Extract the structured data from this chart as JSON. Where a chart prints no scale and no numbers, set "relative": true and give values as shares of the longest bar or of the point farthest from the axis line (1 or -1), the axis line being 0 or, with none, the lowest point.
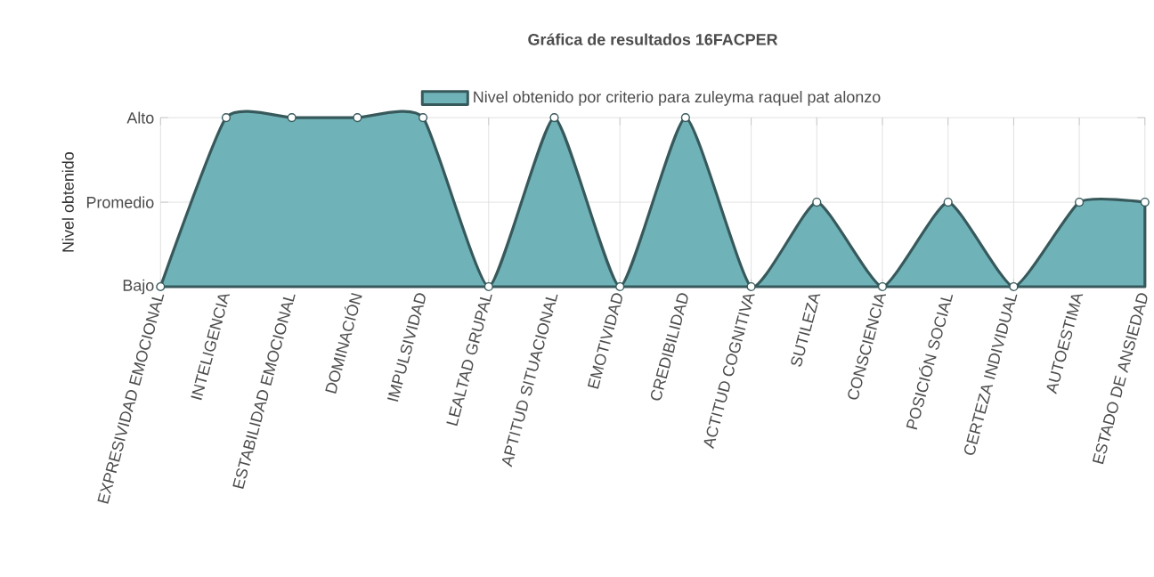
{
  "chart_data": {
    "type": "area",
    "title": "Gráfica de resultados 16FACPER",
    "ylabel": "Nivel obtenido",
    "categories": [
      "EXPRESIVIDAD EMOCIONAL",
      "INTELIGENCIA",
      "ESTABILIDAD EMOCIONAL",
      "DOMINACIÓN",
      "IMPULSIVIDAD",
      "LEALTAD GRUPAL",
      "APTITUD SITUACIONAL",
      "EMOTIVIDAD",
      "CREDIBILIDAD",
      "ACTITUD COGNITIVA",
      "SUTILEZA",
      "CONSCIENCIA",
      "POSICIÓN SOCIAL",
      "CERTEZA INDIVIDUAL",
      "AUTOESTIMA",
      "ESTADO DE ANSIEDAD"
    ],
    "series": [
      {
        "name": "Nivel obtenido por criterio para zuleyma raquel pat alonzo",
        "color": "#6fb3b8",
        "values": [
          0,
          1,
          1,
          1,
          1,
          0,
          1,
          0,
          1,
          0,
          0.5,
          0,
          0.5,
          0,
          0.5,
          0.5
        ]
      }
    ],
    "relative": true,
    "annotations": [
      "Bajo",
      "Promedio",
      "Alto"
    ],
    "grid": true,
    "legend": "top",
    "marker": "circle"
  }
}
